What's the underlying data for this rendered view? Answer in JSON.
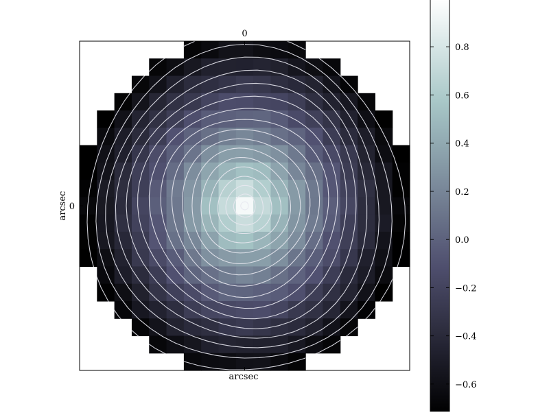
{
  "chart_data": {
    "type": "heatmap",
    "title": "",
    "xlabel": "arcsec",
    "ylabel": "arcsec",
    "x_ticks": [
      0
    ],
    "y_ticks": [
      0
    ],
    "x_tick_labels": [
      "0"
    ],
    "y_tick_labels": [
      "0"
    ],
    "grid": false,
    "colormap": "bone",
    "color_range": [
      -0.72,
      1.0
    ],
    "colorbar": {
      "placement": "right",
      "ticks": [
        0.8,
        0.6,
        0.4,
        0.2,
        0.0,
        -0.2,
        -0.4,
        -0.6
      ],
      "tick_labels": [
        "0.8",
        "0.6",
        "0.4",
        "0.2",
        "0.0",
        "−0.2",
        "−0.4",
        "−0.6"
      ]
    },
    "heatmap": {
      "grid_size": [
        19,
        19
      ],
      "extent": [
        -9.5,
        9.5,
        -9.5,
        9.5
      ],
      "mask": "circular aperture",
      "peak": 0.97,
      "peak_position": [
        0,
        0
      ]
    },
    "contours": {
      "color": "#e8e8f0",
      "levels": [
        0.9,
        0.8,
        0.7,
        0.6,
        0.5,
        0.4,
        0.3,
        0.2,
        0.1,
        0.0,
        -0.1,
        -0.2,
        -0.3,
        -0.4,
        -0.5,
        -0.6,
        -0.7
      ]
    }
  }
}
